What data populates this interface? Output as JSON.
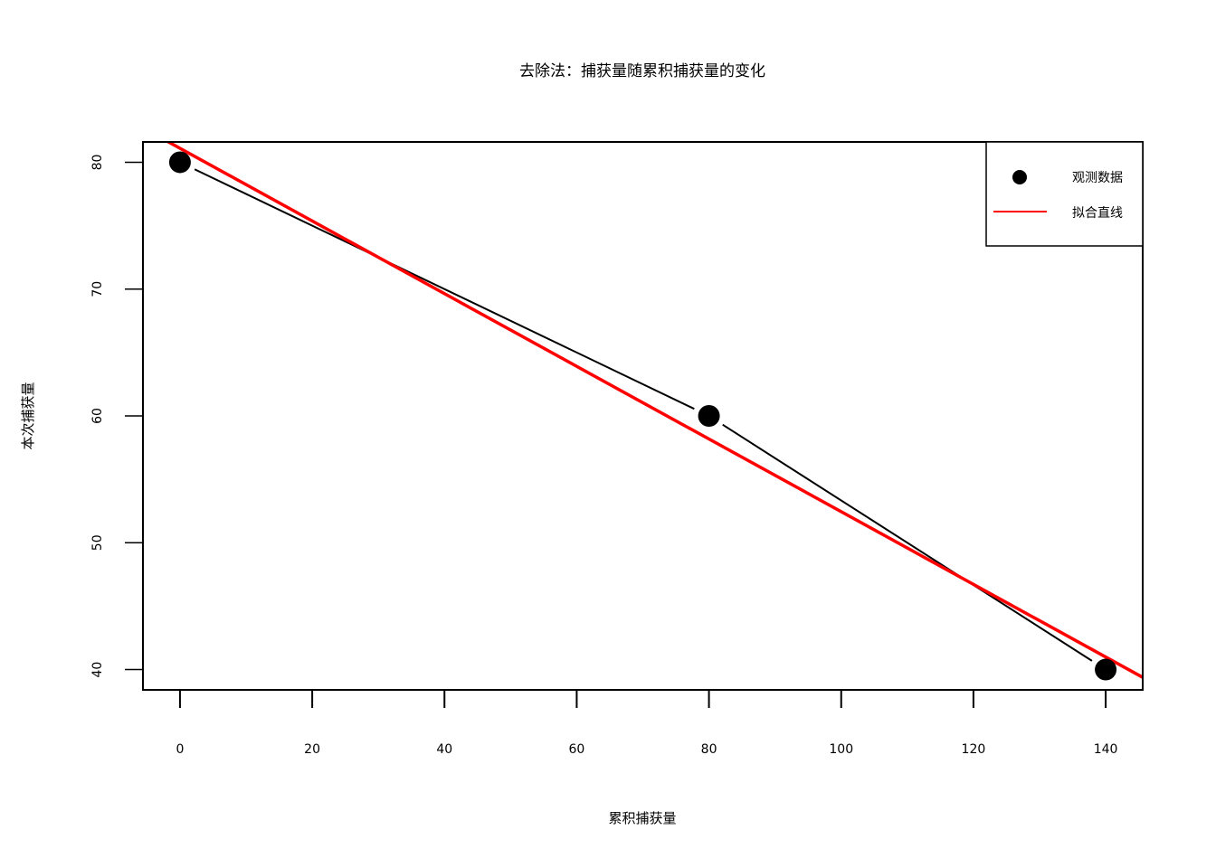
{
  "chart_data": {
    "type": "scatter",
    "title": "去除法：捕获量随累积捕获量的变化",
    "xlabel": "累积捕获量",
    "ylabel": "本次捕获量",
    "xlim": [
      -5.6,
      145.6
    ],
    "ylim": [
      38.4,
      81.6
    ],
    "xticks": [
      0,
      20,
      40,
      60,
      80,
      100,
      120,
      140
    ],
    "yticks": [
      40,
      50,
      60,
      70,
      80
    ],
    "grid": false,
    "legend_position": "top-right",
    "series": [
      {
        "name": "观测数据",
        "kind": "points-connected",
        "color": "#000000",
        "points": [
          {
            "x": 0,
            "y": 80
          },
          {
            "x": 80,
            "y": 60
          },
          {
            "x": 140,
            "y": 40
          }
        ]
      },
      {
        "name": "拟合直线",
        "kind": "line",
        "color": "#ff0000",
        "intercept": 81.1,
        "slope": -0.2865
      }
    ]
  }
}
